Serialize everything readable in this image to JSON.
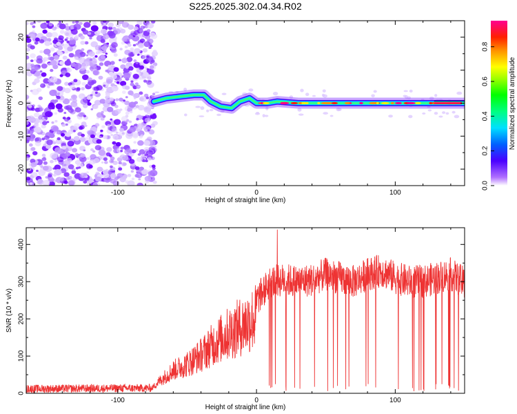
{
  "title": "S225.2025.302.04.34.R02",
  "chart_data": [
    {
      "type": "heatmap",
      "name": "spectrogram",
      "xlabel": "Height of straight line (km)",
      "ylabel": "Frequency (Hz)",
      "xlim": [
        -166,
        150
      ],
      "ylim": [
        -25,
        25
      ],
      "xticks": [
        -100,
        0,
        100
      ],
      "yticks": [
        -20,
        -10,
        0,
        10,
        20
      ],
      "colorbar": {
        "label": "Normalized spectral amplitude",
        "range": [
          0,
          0.95
        ],
        "ticks": [
          0.0,
          0.2,
          0.4,
          0.6,
          0.8
        ]
      },
      "noise_region_x": [
        -166,
        -76
      ],
      "signal_track": [
        {
          "x": -74,
          "f": 0.5
        },
        {
          "x": -65,
          "f": 1.5
        },
        {
          "x": -55,
          "f": 2.0
        },
        {
          "x": -45,
          "f": 2.5
        },
        {
          "x": -38,
          "f": 2.5
        },
        {
          "x": -33,
          "f": 0.5
        },
        {
          "x": -26,
          "f": -1.0
        },
        {
          "x": -18,
          "f": -1.5
        },
        {
          "x": -12,
          "f": 0.5
        },
        {
          "x": -5,
          "f": 1.5
        },
        {
          "x": 0,
          "f": 0.0
        },
        {
          "x": 8,
          "f": 0.0
        },
        {
          "x": 15,
          "f": 0.5
        },
        {
          "x": 30,
          "f": 0.0
        },
        {
          "x": 60,
          "f": 0.0
        },
        {
          "x": 100,
          "f": 0.0
        },
        {
          "x": 150,
          "f": 0.0
        }
      ]
    },
    {
      "type": "line",
      "name": "snr",
      "xlabel": "Height of straight line (km)",
      "ylabel": "SNR (10 * v/v)",
      "xlim": [
        -166,
        150
      ],
      "ylim": [
        0,
        445
      ],
      "xticks": [
        -100,
        0,
        100
      ],
      "yticks": [
        0,
        100,
        200,
        300,
        400
      ],
      "color": "#ee3333",
      "envelope": [
        {
          "x": -166,
          "y": 12
        },
        {
          "x": -76,
          "y": 14
        },
        {
          "x": -70,
          "y": 40
        },
        {
          "x": -60,
          "y": 75
        },
        {
          "x": -50,
          "y": 95
        },
        {
          "x": -40,
          "y": 125
        },
        {
          "x": -30,
          "y": 165
        },
        {
          "x": -20,
          "y": 195
        },
        {
          "x": -10,
          "y": 220
        },
        {
          "x": 0,
          "y": 250
        },
        {
          "x": 10,
          "y": 300
        },
        {
          "x": 20,
          "y": 305
        },
        {
          "x": 30,
          "y": 300
        },
        {
          "x": 40,
          "y": 305
        },
        {
          "x": 50,
          "y": 320
        },
        {
          "x": 60,
          "y": 310
        },
        {
          "x": 70,
          "y": 300
        },
        {
          "x": 80,
          "y": 320
        },
        {
          "x": 90,
          "y": 330
        },
        {
          "x": 100,
          "y": 310
        },
        {
          "x": 110,
          "y": 300
        },
        {
          "x": 120,
          "y": 300
        },
        {
          "x": 130,
          "y": 310
        },
        {
          "x": 140,
          "y": 320
        },
        {
          "x": 150,
          "y": 295
        }
      ],
      "peak": {
        "x": 15,
        "y": 440
      }
    }
  ]
}
